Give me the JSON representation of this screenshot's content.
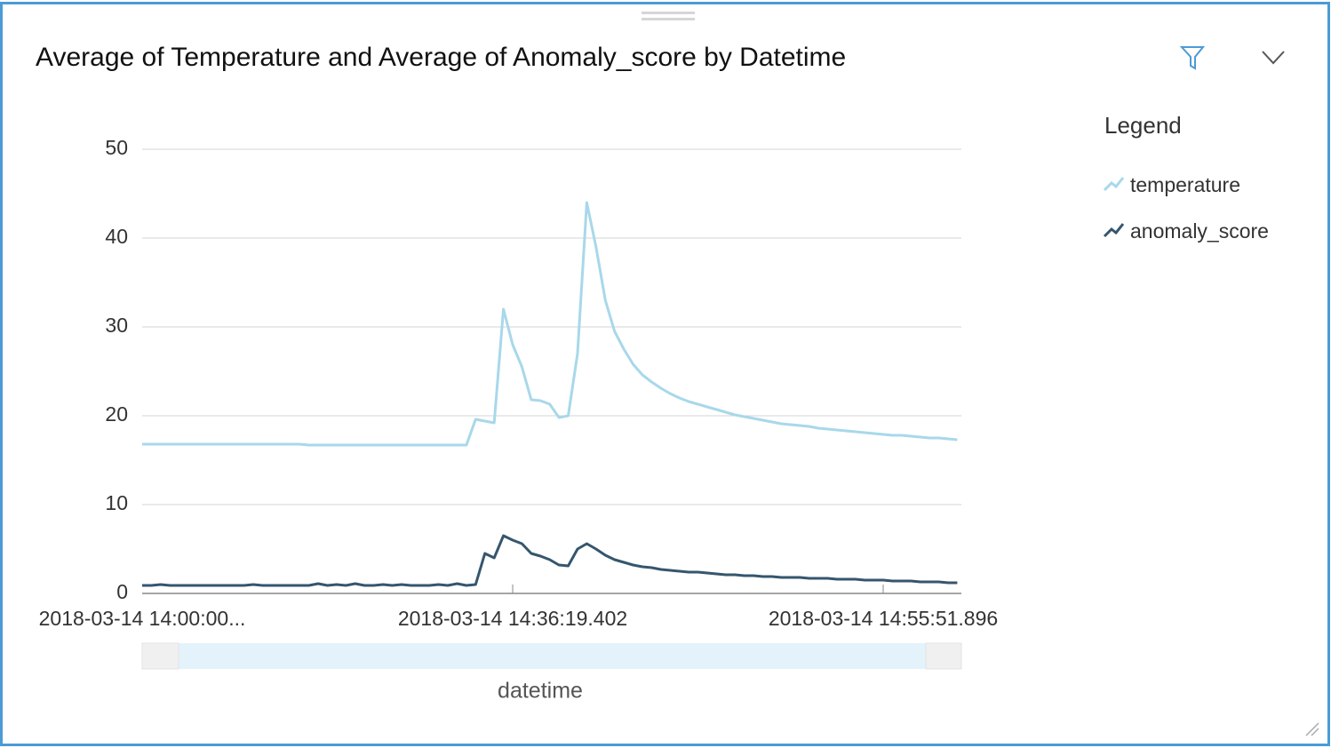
{
  "chart_data": {
    "type": "line",
    "title": "Average of Temperature and Average of Anomaly_score by Datetime",
    "legend_title": "Legend",
    "x_label": "datetime",
    "categories": [
      "2018-03-14 14:00:00...",
      null,
      null,
      null,
      null,
      null,
      null,
      null,
      null,
      null,
      null,
      null,
      null,
      null,
      null,
      null,
      null,
      null,
      null,
      null,
      null,
      null,
      null,
      null,
      null,
      null,
      null,
      null,
      null,
      null,
      null,
      null,
      null,
      null,
      null,
      null,
      null,
      null,
      null,
      null,
      "2018-03-14 14:36:19.402",
      null,
      null,
      null,
      null,
      null,
      null,
      null,
      null,
      null,
      null,
      null,
      null,
      null,
      null,
      null,
      null,
      null,
      null,
      null,
      null,
      null,
      null,
      null,
      null,
      null,
      null,
      null,
      null,
      null,
      null,
      null,
      null,
      null,
      null,
      null,
      null,
      null,
      null,
      null,
      "2018-03-14 14:55:51.896",
      null,
      null,
      null,
      null,
      null,
      null,
      null,
      null
    ],
    "series": [
      {
        "name": "temperature",
        "color": "#a8d8ea",
        "values": [
          16.8,
          16.8,
          16.8,
          16.8,
          16.8,
          16.8,
          16.8,
          16.8,
          16.8,
          16.8,
          16.8,
          16.8,
          16.8,
          16.8,
          16.8,
          16.8,
          16.8,
          16.8,
          16.7,
          16.7,
          16.7,
          16.7,
          16.7,
          16.7,
          16.7,
          16.7,
          16.7,
          16.7,
          16.7,
          16.7,
          16.7,
          16.7,
          16.7,
          16.7,
          16.7,
          16.7,
          19.6,
          19.4,
          19.2,
          32,
          28,
          25.5,
          21.8,
          21.7,
          21.3,
          19.8,
          20,
          27,
          44,
          39,
          33,
          29.5,
          27.5,
          25.8,
          24.6,
          23.8,
          23.1,
          22.5,
          22,
          21.6,
          21.3,
          21,
          20.7,
          20.4,
          20.1,
          19.9,
          19.7,
          19.5,
          19.3,
          19.1,
          19.0,
          18.9,
          18.8,
          18.6,
          18.5,
          18.4,
          18.3,
          18.2,
          18.1,
          18.0,
          17.9,
          17.8,
          17.8,
          17.7,
          17.6,
          17.5,
          17.5,
          17.4,
          17.3
        ]
      },
      {
        "name": "anomaly_score",
        "color": "#35566e",
        "values": [
          0.9,
          0.9,
          1.0,
          0.9,
          0.9,
          0.9,
          0.9,
          0.9,
          0.9,
          0.9,
          0.9,
          0.9,
          1.0,
          0.9,
          0.9,
          0.9,
          0.9,
          0.9,
          0.9,
          1.1,
          0.9,
          1.0,
          0.9,
          1.1,
          0.9,
          0.9,
          1.0,
          0.9,
          1.0,
          0.9,
          0.9,
          0.9,
          1.0,
          0.9,
          1.1,
          0.9,
          1.0,
          4.5,
          4.0,
          6.5,
          6.0,
          5.6,
          4.5,
          4.2,
          3.8,
          3.2,
          3.1,
          5.0,
          5.6,
          5.0,
          4.3,
          3.8,
          3.5,
          3.2,
          3.0,
          2.9,
          2.7,
          2.6,
          2.5,
          2.4,
          2.4,
          2.3,
          2.2,
          2.1,
          2.1,
          2.0,
          2.0,
          1.9,
          1.9,
          1.8,
          1.8,
          1.8,
          1.7,
          1.7,
          1.7,
          1.6,
          1.6,
          1.6,
          1.5,
          1.5,
          1.5,
          1.4,
          1.4,
          1.4,
          1.3,
          1.3,
          1.3,
          1.2,
          1.2
        ]
      }
    ],
    "ylim": [
      0,
      50
    ],
    "yticks": [
      0,
      10,
      20,
      30,
      40,
      50
    ],
    "grid": true
  }
}
